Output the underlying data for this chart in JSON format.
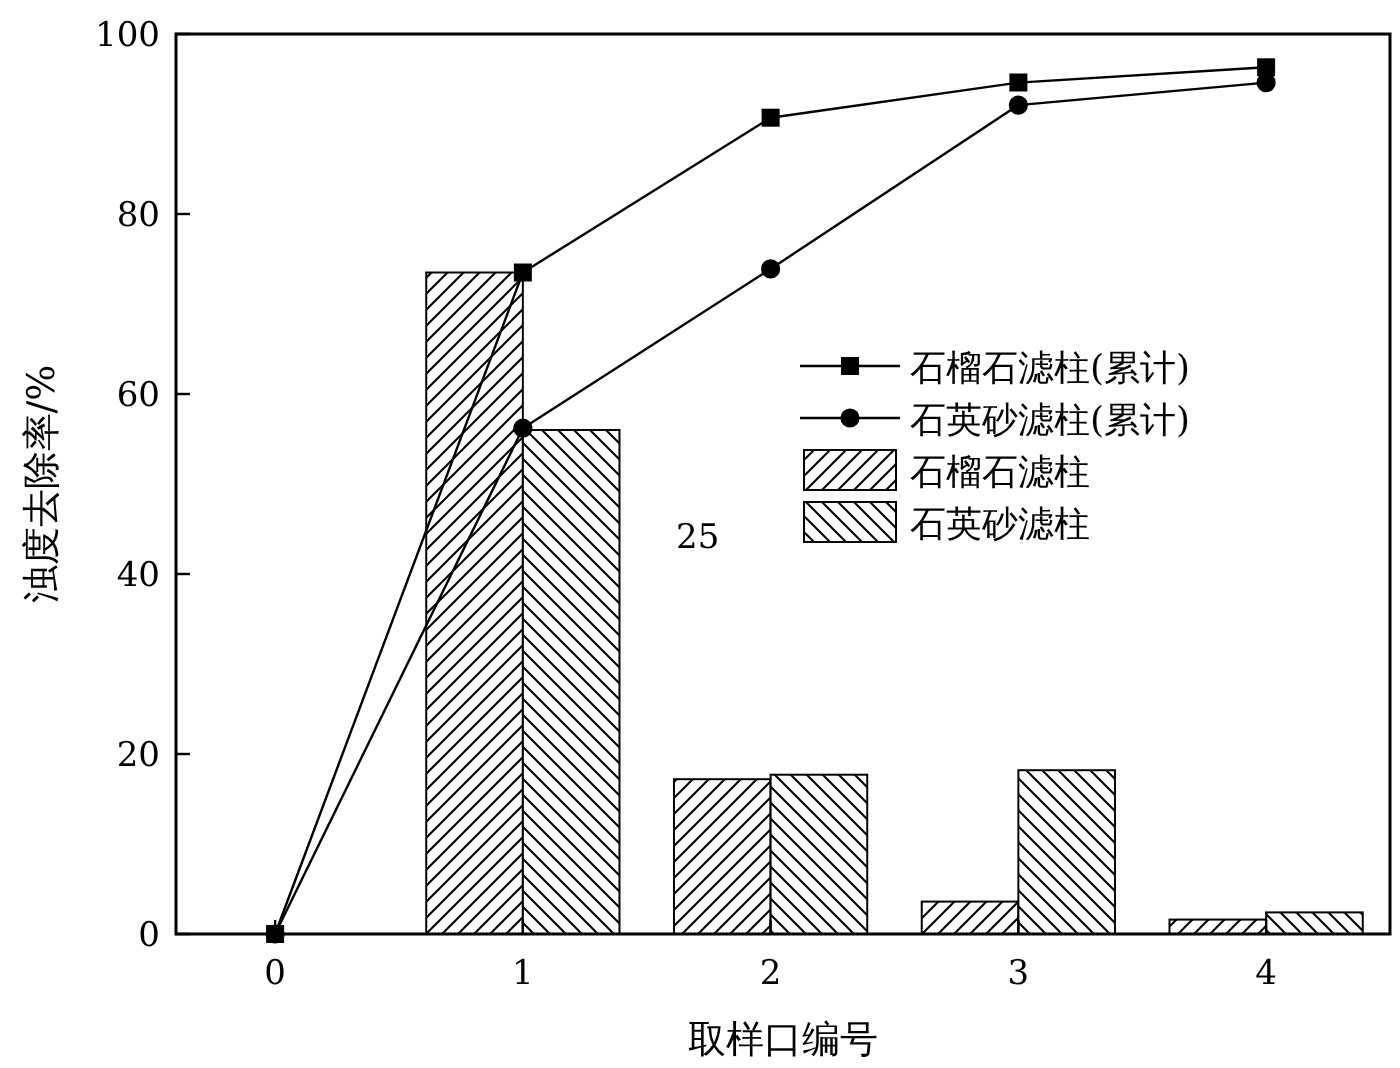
{
  "chart_data": {
    "type": "bar",
    "xlabel": "取样口编号",
    "ylabel": "浊度去除率/%",
    "xlim": [
      -0.4,
      4.5
    ],
    "xticks": [
      0,
      1,
      2,
      3,
      4
    ],
    "ylim": [
      0,
      100
    ],
    "yticks": [
      0,
      20,
      40,
      60,
      80,
      100
    ],
    "legend": "right",
    "annotations": [
      "25"
    ],
    "series": [
      {
        "name": "石榴石滤柱(累计)",
        "type": "line",
        "marker": "square",
        "color": "#000000",
        "x": [
          0,
          1,
          2,
          3,
          4
        ],
        "values": [
          0,
          73.5,
          90.7,
          94.6,
          96.3
        ]
      },
      {
        "name": "石英砂滤柱(累计)",
        "type": "line",
        "marker": "circle",
        "color": "#000000",
        "x": [
          0,
          1,
          2,
          3,
          4
        ],
        "values": [
          0,
          56.2,
          73.9,
          92.1,
          94.6
        ]
      },
      {
        "name": "石榴石滤柱",
        "color": "#000000",
        "x": [
          1,
          2,
          3,
          4
        ],
        "values": [
          73.5,
          17.2,
          3.6,
          1.6
        ]
      },
      {
        "name": "石英砂滤柱",
        "color": "#000000",
        "x": [
          1,
          2,
          3,
          4
        ],
        "values": [
          56.0,
          17.7,
          18.2,
          2.4
        ]
      }
    ]
  }
}
